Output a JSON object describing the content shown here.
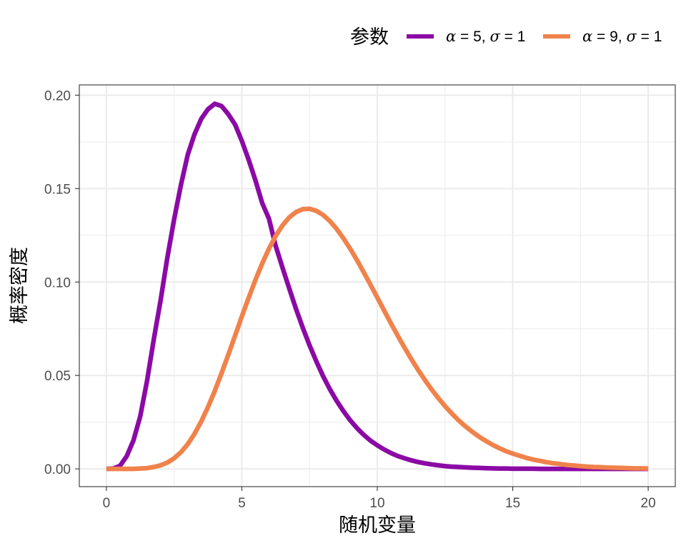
{
  "chart_data": {
    "type": "line",
    "title": "",
    "xlabel": "随机变量",
    "ylabel": "概率密度",
    "xlim": [
      -1,
      21
    ],
    "ylim": [
      -0.0095,
      0.2055
    ],
    "x_ticks": [
      0,
      5,
      10,
      15,
      20
    ],
    "x_tick_labels": [
      "0",
      "5",
      "10",
      "15",
      "20"
    ],
    "y_ticks": [
      0.0,
      0.05,
      0.1,
      0.15,
      0.2
    ],
    "y_tick_labels": [
      "0.00",
      "0.05",
      "0.10",
      "0.15",
      "0.20"
    ],
    "grid": true,
    "legend": {
      "title": "参数",
      "position": "top-right",
      "entries": [
        {
          "alpha_symbol": "α",
          "equals1": " = 5, ",
          "sigma_symbol": "σ",
          "equals2": " = 1"
        },
        {
          "alpha_symbol": "α",
          "equals1": " = 9, ",
          "sigma_symbol": "σ",
          "equals2": " = 1"
        }
      ]
    },
    "x": [
      0.0,
      0.25,
      0.5,
      0.75,
      1.0,
      1.25,
      1.5,
      1.75,
      2.0,
      2.25,
      2.5,
      2.75,
      3.0,
      3.25,
      3.5,
      3.75,
      4.0,
      4.25,
      4.5,
      4.75,
      5.0,
      5.25,
      5.5,
      5.75,
      6.0,
      6.25,
      6.5,
      6.75,
      7.0,
      7.25,
      7.5,
      7.75,
      8.0,
      8.25,
      8.5,
      8.75,
      9.0,
      9.25,
      9.5,
      9.75,
      10.0,
      10.25,
      10.5,
      10.75,
      11.0,
      11.25,
      11.5,
      11.75,
      12.0,
      12.25,
      12.5,
      12.75,
      13.0,
      13.25,
      13.5,
      13.75,
      14.0,
      14.25,
      14.5,
      14.75,
      15.0,
      15.25,
      15.5,
      15.75,
      16.0,
      16.25,
      16.5,
      16.75,
      17.0,
      17.25,
      17.5,
      17.75,
      18.0,
      18.25,
      18.5,
      18.75,
      19.0,
      19.25,
      19.5,
      19.75,
      20.0
    ],
    "series": [
      {
        "name": "α = 5, σ = 1",
        "color": "#8B0AA5",
        "values": [
          0.0,
          0.0002,
          0.0016,
          0.0068,
          0.0153,
          0.0282,
          0.0471,
          0.0694,
          0.0902,
          0.1131,
          0.1336,
          0.1519,
          0.168,
          0.179,
          0.1873,
          0.1925,
          0.1954,
          0.1942,
          0.1898,
          0.1843,
          0.1755,
          0.1655,
          0.1545,
          0.1423,
          0.1339,
          0.1193,
          0.1077,
          0.0965,
          0.0856,
          0.0755,
          0.0661,
          0.0575,
          0.0496,
          0.0426,
          0.0364,
          0.0309,
          0.026,
          0.0218,
          0.0182,
          0.0151,
          0.0126,
          0.0104,
          0.0085,
          0.0069,
          0.0057,
          0.0046,
          0.0037,
          0.003,
          0.0024,
          0.0019,
          0.0015,
          0.0012,
          0.001,
          0.0008,
          0.0006,
          0.0005,
          0.0004,
          0.0003,
          0.0002,
          0.0002,
          0.0001,
          0.0001,
          0.0001,
          0.0001,
          0.0,
          0.0,
          0.0,
          0.0,
          0.0,
          0.0,
          0.0,
          0.0,
          0.0,
          0.0,
          0.0,
          0.0,
          0.0,
          0.0,
          0.0,
          0.0,
          0.0
        ]
      },
      {
        "name": "α = 9, σ = 1",
        "color": "#F0824B",
        "values": [
          0.0,
          0.0,
          0.0,
          0.0,
          0.0,
          0.0002,
          0.0004,
          0.001,
          0.0019,
          0.0034,
          0.0057,
          0.0089,
          0.0132,
          0.0187,
          0.0254,
          0.0331,
          0.0417,
          0.0512,
          0.0611,
          0.0713,
          0.0816,
          0.0915,
          0.1011,
          0.1099,
          0.1178,
          0.1247,
          0.1303,
          0.1346,
          0.1375,
          0.139,
          0.1392,
          0.1381,
          0.1359,
          0.1326,
          0.1284,
          0.1234,
          0.1178,
          0.1117,
          0.1052,
          0.0985,
          0.0917,
          0.0848,
          0.078,
          0.0714,
          0.065,
          0.0589,
          0.0531,
          0.0477,
          0.0426,
          0.0379,
          0.0336,
          0.0296,
          0.026,
          0.0228,
          0.0199,
          0.0173,
          0.015,
          0.0129,
          0.0111,
          0.0095,
          0.0082,
          0.007,
          0.0059,
          0.005,
          0.0043,
          0.0036,
          0.003,
          0.0026,
          0.0021,
          0.0018,
          0.0015,
          0.0012,
          0.001,
          0.0009,
          0.0007,
          0.0006,
          0.0005,
          0.0004,
          0.0003,
          0.0003,
          0.0002
        ]
      }
    ]
  }
}
